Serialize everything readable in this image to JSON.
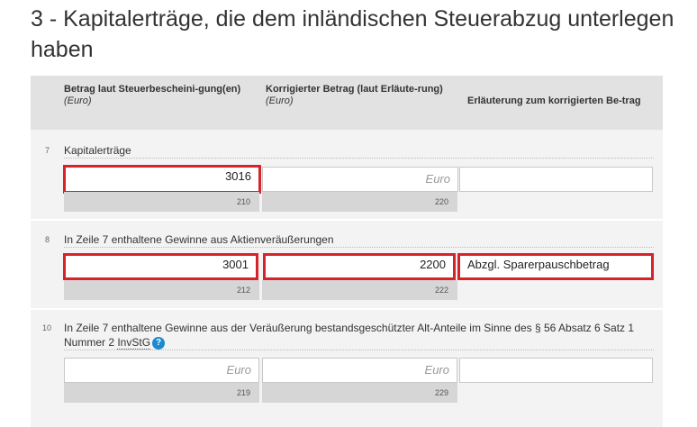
{
  "section_title": "3 - Kapitalerträge, die dem inländischen Steuerabzug unterlegen haben",
  "headers": {
    "col1": "Betrag laut Steuerbescheini-gung(en)",
    "col1_unit": "(Euro)",
    "col2": "Korrigierter Betrag (laut Erläute-rung)",
    "col2_unit": "(Euro)",
    "col3": "Erläuterung zum korrigierten Be-trag"
  },
  "rows": [
    {
      "number": "7",
      "label": "Kapitalerträge",
      "field1": {
        "value": "3016",
        "placeholder": "Euro",
        "code": "210"
      },
      "field2": {
        "value": "",
        "placeholder": "Euro",
        "code": "220"
      },
      "field3": {
        "value": ""
      }
    },
    {
      "number": "8",
      "label": "In Zeile 7 enthaltene Gewinne aus Aktienveräußerungen",
      "field1": {
        "value": "3001",
        "placeholder": "Euro",
        "code": "212"
      },
      "field2": {
        "value": "2200",
        "placeholder": "Euro",
        "code": "222"
      },
      "field3": {
        "value": "Abzgl. Sparerpauschbetrag"
      }
    },
    {
      "number": "10",
      "label_part1": "In Zeile 7 enthaltene Gewinne aus der Veräußerung bestandsgeschützter Alt-Anteile im Sinne des § 56 Absatz 6 Satz 1 Nummer 2 ",
      "label_abbr": "InvStG",
      "help_glyph": "?",
      "field1": {
        "value": "",
        "placeholder": "Euro",
        "code": "219"
      },
      "field2": {
        "value": "",
        "placeholder": "Euro",
        "code": "229"
      },
      "field3": {
        "value": ""
      }
    }
  ],
  "colors": {
    "highlight": "#d8222a",
    "help_icon": "#1b8ad1",
    "header_bg": "#e2e2e2",
    "row_bg": "#f3f3f3"
  }
}
